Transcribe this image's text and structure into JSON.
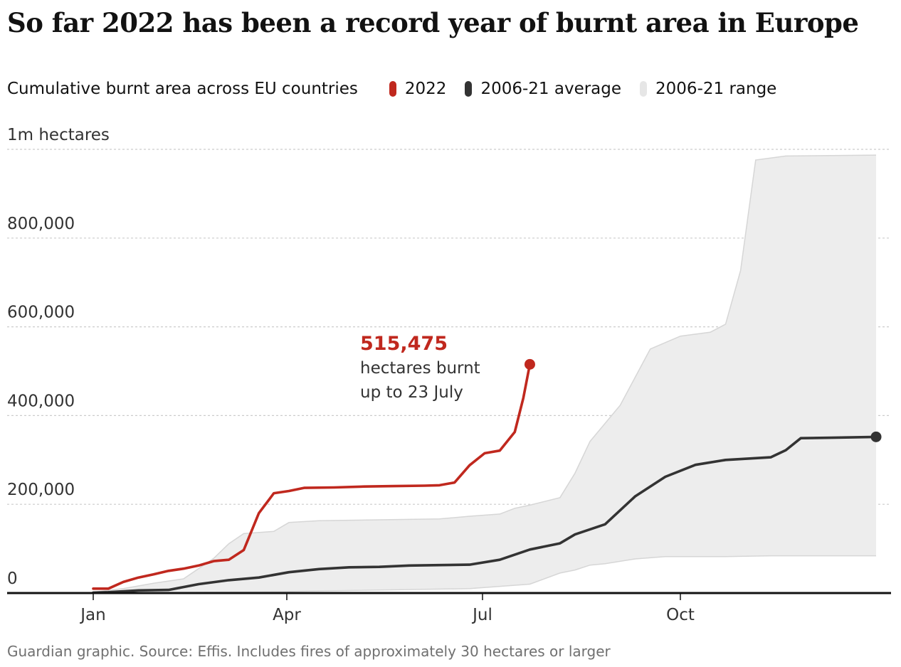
{
  "title": "So far 2022 has been a record year of burnt area in Europe",
  "footer": "Guardian graphic. Source: Effis. Includes fires of approximately 30 hectares or larger",
  "colors": {
    "series_2022": "#c0281e",
    "average": "#333333",
    "range_fill": "#ededed",
    "range_stroke": "#d6d6d6",
    "grid": "#cccccc",
    "axis": "#121212"
  },
  "chart_data": {
    "type": "line",
    "subtitle": "Cumulative burnt area across EU countries",
    "y_unit_label": "1m hectares",
    "ylim": [
      0,
      1000000
    ],
    "xlim": [
      "2022-01-01",
      "2022-12-31"
    ],
    "grid": true,
    "y_ticks": [
      {
        "value": 0,
        "label": "0"
      },
      {
        "value": 200000,
        "label": "200,000"
      },
      {
        "value": 400000,
        "label": "400,000"
      },
      {
        "value": 600000,
        "label": "600,000"
      },
      {
        "value": 800000,
        "label": "800,000"
      },
      {
        "value": 1000000,
        "label": "1m hectares"
      }
    ],
    "x_ticks": [
      {
        "date": "2022-01-01",
        "label": "Jan"
      },
      {
        "date": "2022-04-01",
        "label": "Apr"
      },
      {
        "date": "2022-07-01",
        "label": "Jul"
      },
      {
        "date": "2022-10-01",
        "label": "Oct"
      }
    ],
    "legend": [
      "2022",
      "2006-21 average",
      "2006-21 range"
    ],
    "series": [
      {
        "name": "2022",
        "role": "line",
        "end_marker": true,
        "points": [
          [
            "2022-01-01",
            10000
          ],
          [
            "2022-01-08",
            10000
          ],
          [
            "2022-01-15",
            25000
          ],
          [
            "2022-01-22",
            35000
          ],
          [
            "2022-01-29",
            42000
          ],
          [
            "2022-02-05",
            50000
          ],
          [
            "2022-02-12",
            55000
          ],
          [
            "2022-02-19",
            62000
          ],
          [
            "2022-02-26",
            72000
          ],
          [
            "2022-03-05",
            75000
          ],
          [
            "2022-03-12",
            97000
          ],
          [
            "2022-03-19",
            180000
          ],
          [
            "2022-03-26",
            225000
          ],
          [
            "2022-04-02",
            230000
          ],
          [
            "2022-04-09",
            237000
          ],
          [
            "2022-04-23",
            238000
          ],
          [
            "2022-05-07",
            240000
          ],
          [
            "2022-05-21",
            241000
          ],
          [
            "2022-06-04",
            242000
          ],
          [
            "2022-06-11",
            243000
          ],
          [
            "2022-06-18",
            249000
          ],
          [
            "2022-06-25",
            288000
          ],
          [
            "2022-07-02",
            315000
          ],
          [
            "2022-07-09",
            321000
          ],
          [
            "2022-07-16",
            363000
          ],
          [
            "2022-07-20",
            440000
          ],
          [
            "2022-07-23",
            515475
          ]
        ]
      },
      {
        "name": "2006-21 average",
        "role": "line",
        "end_marker": true,
        "points": [
          [
            "2022-01-01",
            1000
          ],
          [
            "2022-01-08",
            2000
          ],
          [
            "2022-01-22",
            6000
          ],
          [
            "2022-02-05",
            7000
          ],
          [
            "2022-02-19",
            20000
          ],
          [
            "2022-03-05",
            29000
          ],
          [
            "2022-03-19",
            35000
          ],
          [
            "2022-04-02",
            47000
          ],
          [
            "2022-04-16",
            54000
          ],
          [
            "2022-04-30",
            58000
          ],
          [
            "2022-05-14",
            59000
          ],
          [
            "2022-05-28",
            62000
          ],
          [
            "2022-06-11",
            63000
          ],
          [
            "2022-06-25",
            64000
          ],
          [
            "2022-07-09",
            75000
          ],
          [
            "2022-07-23",
            98000
          ],
          [
            "2022-08-06",
            112000
          ],
          [
            "2022-08-13",
            132000
          ],
          [
            "2022-08-27",
            155000
          ],
          [
            "2022-09-10",
            218000
          ],
          [
            "2022-09-24",
            262000
          ],
          [
            "2022-10-08",
            289000
          ],
          [
            "2022-10-22",
            300000
          ],
          [
            "2022-11-05",
            304000
          ],
          [
            "2022-11-12",
            306000
          ],
          [
            "2022-11-19",
            322000
          ],
          [
            "2022-11-26",
            349000
          ],
          [
            "2022-12-10",
            350000
          ],
          [
            "2022-12-31",
            352000
          ]
        ]
      },
      {
        "name": "2006-21 range",
        "role": "band",
        "upper": [
          [
            "2022-01-01",
            2000
          ],
          [
            "2022-01-15",
            10000
          ],
          [
            "2022-01-29",
            22000
          ],
          [
            "2022-02-12",
            32000
          ],
          [
            "2022-02-26",
            78000
          ],
          [
            "2022-03-05",
            111000
          ],
          [
            "2022-03-12",
            134000
          ],
          [
            "2022-03-26",
            139000
          ],
          [
            "2022-04-02",
            159000
          ],
          [
            "2022-04-16",
            163000
          ],
          [
            "2022-05-14",
            165000
          ],
          [
            "2022-06-11",
            167000
          ],
          [
            "2022-06-25",
            173000
          ],
          [
            "2022-07-09",
            178000
          ],
          [
            "2022-07-16",
            191000
          ],
          [
            "2022-07-23",
            198000
          ],
          [
            "2022-08-06",
            215000
          ],
          [
            "2022-08-13",
            270000
          ],
          [
            "2022-08-20",
            342000
          ],
          [
            "2022-09-03",
            423000
          ],
          [
            "2022-09-17",
            550000
          ],
          [
            "2022-10-01",
            579000
          ],
          [
            "2022-10-15",
            588000
          ],
          [
            "2022-10-22",
            606000
          ],
          [
            "2022-10-29",
            727000
          ],
          [
            "2022-11-05",
            976000
          ],
          [
            "2022-11-19",
            985000
          ],
          [
            "2022-12-31",
            987000
          ]
        ],
        "lower": [
          [
            "2022-01-01",
            0
          ],
          [
            "2022-03-26",
            3000
          ],
          [
            "2022-06-25",
            10000
          ],
          [
            "2022-07-09",
            15000
          ],
          [
            "2022-07-23",
            20000
          ],
          [
            "2022-08-06",
            45000
          ],
          [
            "2022-08-13",
            52000
          ],
          [
            "2022-08-20",
            63000
          ],
          [
            "2022-08-27",
            66000
          ],
          [
            "2022-09-10",
            77000
          ],
          [
            "2022-09-24",
            82000
          ],
          [
            "2022-10-22",
            82000
          ],
          [
            "2022-11-12",
            84000
          ],
          [
            "2022-12-31",
            84000
          ]
        ]
      }
    ],
    "annotation": {
      "series": "2022",
      "value": "515,475",
      "text_lines": [
        "hectares burnt",
        "up to 23 July"
      ]
    }
  }
}
